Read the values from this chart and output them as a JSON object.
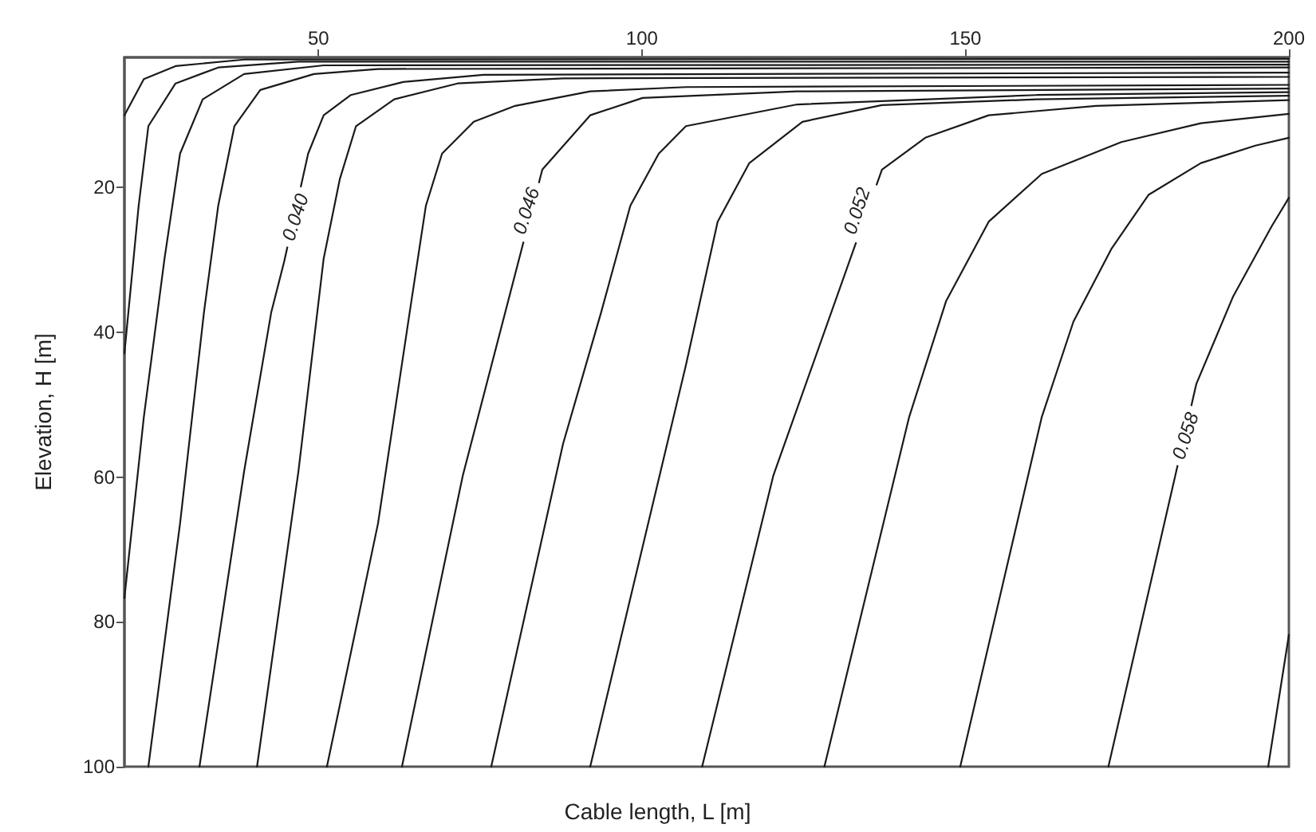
{
  "chart_data": {
    "type": "line",
    "xlabel": "Cable length, L [m]",
    "ylabel": "Elevation, H [m]",
    "xlim": [
      20,
      200
    ],
    "xticks": [
      50,
      100,
      150,
      200
    ],
    "ylim": [
      100,
      2
    ],
    "yticks": [
      20,
      40,
      60,
      80,
      100
    ],
    "grid": false,
    "marker": "none",
    "line_style": "solid",
    "annotations": [
      {
        "text": "0.040",
        "x": 46.4,
        "y": 24.1
      },
      {
        "text": "0.046",
        "x": 82.1,
        "y": 23.2
      },
      {
        "text": "0.052",
        "x": 133.2,
        "y": 23.2
      },
      {
        "text": "0.058",
        "x": 184,
        "y": 54.3
      }
    ],
    "series": [
      {
        "color": "#1a1a1a",
        "x": [
          20,
          23,
          27.9,
          38.5,
          200
        ],
        "values": [
          10,
          5,
          3.2,
          2.3,
          2.2
        ]
      },
      {
        "color": "#1a1a1a",
        "x": [
          20,
          22.2,
          23.7,
          27.9,
          34.5,
          46.9,
          200
        ],
        "values": [
          42.9,
          22.5,
          11.5,
          5.6,
          3.4,
          2.6,
          2.6
        ]
      },
      {
        "color": "#1a1a1a",
        "x": [
          20,
          23,
          26.2,
          28.6,
          32.1,
          38.5,
          50.8,
          200
        ],
        "values": [
          76.7,
          51.7,
          29.8,
          15.3,
          7.8,
          4.3,
          3.1,
          3
        ]
      },
      {
        "color": "#1a1a1a",
        "x": [
          23.7,
          28.6,
          32.3,
          34.5,
          37,
          41,
          49.3,
          59.2,
          200
        ],
        "values": [
          100,
          66.4,
          37.2,
          22.5,
          11.5,
          6.5,
          4.3,
          3.6,
          3.4
        ]
      },
      {
        "color": "#1a1a1a",
        "x": [
          31.6,
          38.5,
          42.7,
          44.7,
          48.4,
          50.8,
          55,
          63.1,
          75.5,
          200
        ],
        "values": [
          100,
          59.2,
          37.2,
          30.2,
          15.3,
          10,
          7.2,
          5.4,
          4.4,
          4.1
        ]
      },
      {
        "color": "#1a1a1a",
        "x": [
          40.5,
          46.9,
          50.8,
          53.3,
          55.8,
          61.7,
          71.5,
          87.8,
          200
        ],
        "values": [
          100,
          59.2,
          29.8,
          18.8,
          11.5,
          7.8,
          5.6,
          4.9,
          4.7
        ]
      },
      {
        "color": "#1a1a1a",
        "x": [
          51.3,
          59.2,
          64.1,
          66.6,
          69.1,
          74,
          80.4,
          92,
          106.8,
          200
        ],
        "values": [
          100,
          66.4,
          37.2,
          22.5,
          15.3,
          10.9,
          8.7,
          6.7,
          6.1,
          5.8
        ]
      },
      {
        "color": "#1a1a1a",
        "x": [
          62.9,
          72.3,
          84.6,
          92,
          100.1,
          124,
          200
        ],
        "values": [
          100,
          59.8,
          17.5,
          10,
          7.6,
          6.7,
          6.3
        ]
      },
      {
        "color": "#1a1a1a",
        "x": [
          76.7,
          87.8,
          93.7,
          98.2,
          102.6,
          106.8,
          124,
          161,
          200
        ],
        "values": [
          100,
          55.4,
          37.2,
          22.5,
          15.3,
          11.5,
          8.5,
          7.2,
          6.8
        ]
      },
      {
        "color": "#1a1a1a",
        "x": [
          92,
          106.8,
          111.7,
          116.6,
          124.8,
          137.1,
          161,
          200
        ],
        "values": [
          100,
          44.5,
          24.7,
          16.6,
          10.9,
          8.6,
          7.8,
          7.3
        ]
      },
      {
        "color": "#1a1a1a",
        "x": [
          109.3,
          120.3,
          137.1,
          143.8,
          153.6,
          170.2,
          200
        ],
        "values": [
          100,
          59.8,
          17.5,
          13.1,
          10,
          8.7,
          7.9
        ]
      },
      {
        "color": "#1a1a1a",
        "x": [
          128.2,
          141.3,
          147,
          153.6,
          161.8,
          174.1,
          186.4,
          200
        ],
        "values": [
          100,
          51.7,
          35.7,
          24.7,
          18.1,
          13.7,
          11.1,
          9.8
        ]
      },
      {
        "color": "#1a1a1a",
        "x": [
          149.2,
          161.8,
          166.7,
          172.6,
          178.3,
          186.4,
          194.8,
          200
        ],
        "values": [
          100,
          51.7,
          38.5,
          28.4,
          21,
          16.6,
          14.2,
          13.1
        ]
      },
      {
        "color": "#1a1a1a",
        "x": [
          172.1,
          185.7,
          191.4,
          197.3,
          200
        ],
        "values": [
          100,
          47.1,
          35,
          25.4,
          21.4
        ]
      },
      {
        "color": "#1a1a1a",
        "x": [
          196.8,
          200
        ],
        "values": [
          100,
          81.8
        ]
      }
    ]
  }
}
